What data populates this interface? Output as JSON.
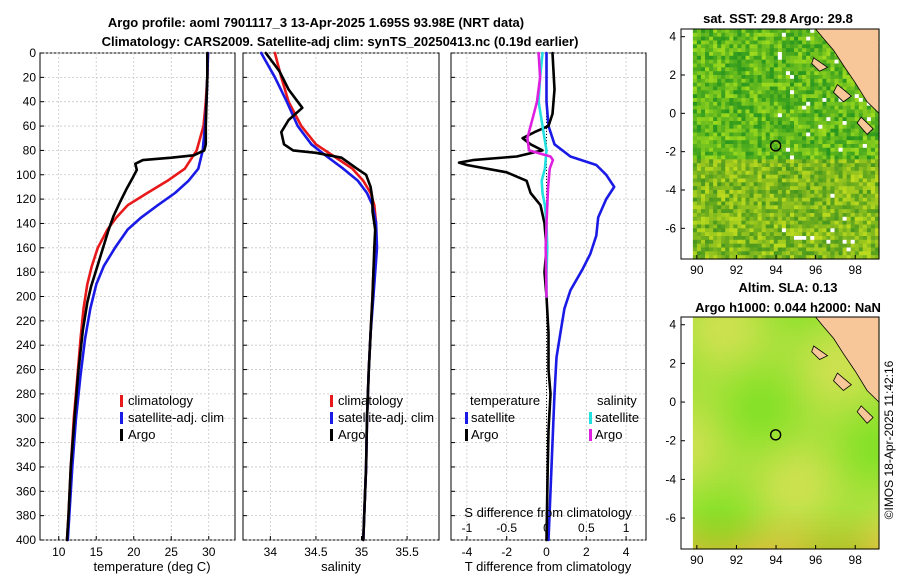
{
  "header": {
    "line1": "Argo profile: aoml 7901117_3 13-Apr-2025 1.695S 93.98E (NRT data)",
    "line2": "Climatology: CARS2009. Satellite-adj clim: synTS_20250413.nc (0.19d earlier)"
  },
  "colors": {
    "climatology": "#e8191a",
    "satellite": "#1a1ae6",
    "argo": "#000000",
    "sat_s": "#22e0e0",
    "argo_s": "#e020e0"
  },
  "chart_data": [
    {
      "id": "temperature",
      "type": "line",
      "xlabel": "temperature (deg C)",
      "ylabel": "",
      "xlim": [
        7.5,
        33.5
      ],
      "ylim": [
        400,
        0
      ],
      "xticks": [
        10,
        15,
        20,
        25,
        30
      ],
      "xtick_labels": [
        "10",
        "15",
        "20",
        "25",
        "30"
      ],
      "yticks": [
        0,
        20,
        40,
        60,
        80,
        100,
        120,
        140,
        160,
        180,
        200,
        220,
        240,
        260,
        280,
        300,
        320,
        340,
        360,
        380,
        400
      ],
      "ytick_labels": [
        "0",
        "20",
        "40",
        "60",
        "80",
        "100",
        "120",
        "140",
        "160",
        "180",
        "200",
        "220",
        "240",
        "260",
        "280",
        "300",
        "320",
        "340",
        "360",
        "380",
        "400"
      ],
      "grid": true,
      "legend": [
        "climatology",
        "satellite-adj. clim",
        "Argo"
      ],
      "legend_position": "lower-right",
      "series": [
        {
          "name": "climatology",
          "color": "#e8191a",
          "points": [
            [
              29.9,
              0
            ],
            [
              29.8,
              20
            ],
            [
              29.6,
              40
            ],
            [
              29.3,
              60
            ],
            [
              28.4,
              80
            ],
            [
              26.8,
              95
            ],
            [
              24.5,
              105
            ],
            [
              21.8,
              115
            ],
            [
              19.2,
              125
            ],
            [
              17.7,
              135
            ],
            [
              16.5,
              145
            ],
            [
              15.2,
              160
            ],
            [
              14.4,
              175
            ],
            [
              13.8,
              190
            ],
            [
              13.3,
              210
            ],
            [
              12.9,
              235
            ],
            [
              12.5,
              265
            ],
            [
              12.0,
              300
            ],
            [
              11.6,
              340
            ],
            [
              11.3,
              380
            ],
            [
              11.1,
              400
            ]
          ]
        },
        {
          "name": "satellite-adj. clim",
          "color": "#1a1ae6",
          "points": [
            [
              29.9,
              0
            ],
            [
              29.8,
              20
            ],
            [
              29.7,
              40
            ],
            [
              29.5,
              60
            ],
            [
              29.2,
              80
            ],
            [
              28.6,
              95
            ],
            [
              27.3,
              105
            ],
            [
              25.5,
              115
            ],
            [
              23.2,
              125
            ],
            [
              21.0,
              135
            ],
            [
              19.2,
              145
            ],
            [
              17.5,
              160
            ],
            [
              16.0,
              175
            ],
            [
              15.0,
              190
            ],
            [
              14.2,
              210
            ],
            [
              13.5,
              235
            ],
            [
              12.9,
              265
            ],
            [
              12.3,
              300
            ],
            [
              11.8,
              340
            ],
            [
              11.4,
              380
            ],
            [
              11.2,
              400
            ]
          ]
        },
        {
          "name": "Argo",
          "color": "#000000",
          "points": [
            [
              29.8,
              0
            ],
            [
              29.8,
              20
            ],
            [
              29.7,
              40
            ],
            [
              29.6,
              60
            ],
            [
              29.6,
              75
            ],
            [
              29.4,
              80
            ],
            [
              28.0,
              84
            ],
            [
              25.0,
              86
            ],
            [
              21.2,
              88
            ],
            [
              20.2,
              91
            ],
            [
              20.4,
              96
            ],
            [
              19.9,
              102
            ],
            [
              19.0,
              112
            ],
            [
              18.2,
              122
            ],
            [
              17.3,
              134
            ],
            [
              16.6,
              146
            ],
            [
              15.8,
              162
            ],
            [
              15.0,
              178
            ],
            [
              14.3,
              192
            ],
            [
              13.8,
              205
            ],
            [
              13.2,
              228
            ],
            [
              12.6,
              262
            ],
            [
              12.1,
              300
            ],
            [
              11.6,
              340
            ],
            [
              11.3,
              380
            ],
            [
              11.1,
              400
            ]
          ]
        }
      ]
    },
    {
      "id": "salinity",
      "type": "line",
      "xlabel": "salinity",
      "ylabel": "",
      "xlim": [
        33.7,
        35.85
      ],
      "ylim": [
        400,
        0
      ],
      "xticks": [
        34,
        34.5,
        35,
        35.5
      ],
      "xtick_labels": [
        "34",
        "34.5",
        "35",
        "35.5"
      ],
      "grid": true,
      "legend": [
        "climatology",
        "satellite-adj. clim",
        "Argo"
      ],
      "legend_position": "lower-right",
      "series": [
        {
          "name": "climatology",
          "color": "#e8191a",
          "points": [
            [
              34.05,
              0
            ],
            [
              34.12,
              20
            ],
            [
              34.2,
              40
            ],
            [
              34.34,
              60
            ],
            [
              34.5,
              75
            ],
            [
              34.7,
              85
            ],
            [
              34.9,
              95
            ],
            [
              35.02,
              105
            ],
            [
              35.1,
              115
            ],
            [
              35.14,
              125
            ],
            [
              35.16,
              140
            ],
            [
              35.15,
              160
            ],
            [
              35.13,
              180
            ],
            [
              35.12,
              200
            ],
            [
              35.1,
              230
            ],
            [
              35.08,
              260
            ],
            [
              35.06,
              300
            ],
            [
              35.05,
              340
            ],
            [
              35.03,
              380
            ],
            [
              35.02,
              400
            ]
          ]
        },
        {
          "name": "satellite-adj. clim",
          "color": "#1a1ae6",
          "points": [
            [
              33.9,
              0
            ],
            [
              34.05,
              20
            ],
            [
              34.18,
              40
            ],
            [
              34.3,
              60
            ],
            [
              34.45,
              75
            ],
            [
              34.62,
              85
            ],
            [
              34.8,
              95
            ],
            [
              34.96,
              105
            ],
            [
              35.06,
              115
            ],
            [
              35.12,
              125
            ],
            [
              35.16,
              140
            ],
            [
              35.17,
              160
            ],
            [
              35.15,
              180
            ],
            [
              35.13,
              200
            ],
            [
              35.1,
              230
            ],
            [
              35.08,
              260
            ],
            [
              35.06,
              300
            ],
            [
              35.05,
              340
            ],
            [
              35.03,
              380
            ],
            [
              35.02,
              400
            ]
          ]
        },
        {
          "name": "Argo",
          "color": "#000000",
          "points": [
            [
              33.95,
              0
            ],
            [
              34.1,
              15
            ],
            [
              34.2,
              30
            ],
            [
              34.35,
              45
            ],
            [
              34.2,
              55
            ],
            [
              34.12,
              65
            ],
            [
              34.15,
              75
            ],
            [
              34.25,
              80
            ],
            [
              34.5,
              82
            ],
            [
              34.78,
              86
            ],
            [
              34.95,
              95
            ],
            [
              35.05,
              100
            ],
            [
              35.1,
              110
            ],
            [
              35.12,
              120
            ],
            [
              35.12,
              130
            ],
            [
              35.15,
              145
            ],
            [
              35.14,
              160
            ],
            [
              35.13,
              180
            ],
            [
              35.12,
              200
            ],
            [
              35.1,
              230
            ],
            [
              35.08,
              260
            ],
            [
              35.06,
              300
            ],
            [
              35.05,
              340
            ],
            [
              35.03,
              380
            ],
            [
              35.02,
              400
            ]
          ]
        }
      ]
    },
    {
      "id": "difference",
      "type": "line",
      "xlabel": "T difference from climatology",
      "top_label": "S difference from climatology",
      "xlim": [
        -4.8,
        5.0
      ],
      "ylim": [
        400,
        0
      ],
      "xticks": [
        -4,
        -2,
        0,
        2,
        4
      ],
      "xtick_labels": [
        "-4",
        "-2",
        "0",
        "2",
        "4"
      ],
      "s_xlim": [
        -1.2,
        1.25
      ],
      "s_xticks": [
        -1,
        -0.5,
        0,
        0.5,
        1
      ],
      "s_xtick_labels": [
        "-1",
        "-0.5",
        "0",
        "0.5",
        "1"
      ],
      "grid": true,
      "legend_temperature": {
        "heading": "temperature",
        "items": [
          "satellite",
          "Argo"
        ]
      },
      "legend_salinity": {
        "heading": "salinity",
        "items": [
          "satellite",
          "Argo"
        ]
      },
      "series": [
        {
          "name": "T satellite",
          "color": "#1a1ae6",
          "points": [
            [
              0.0,
              0
            ],
            [
              0.0,
              40
            ],
            [
              0.1,
              60
            ],
            [
              0.4,
              75
            ],
            [
              1.2,
              85
            ],
            [
              2.5,
              92
            ],
            [
              3.0,
              100
            ],
            [
              3.4,
              110
            ],
            [
              3.0,
              120
            ],
            [
              2.6,
              135
            ],
            [
              2.5,
              150
            ],
            [
              2.2,
              165
            ],
            [
              1.8,
              178
            ],
            [
              1.2,
              195
            ],
            [
              0.9,
              210
            ],
            [
              0.7,
              230
            ],
            [
              0.5,
              250
            ],
            [
              0.4,
              280
            ],
            [
              0.3,
              320
            ],
            [
              0.2,
              360
            ],
            [
              0.1,
              400
            ]
          ]
        },
        {
          "name": "T Argo",
          "color": "#000000",
          "points": [
            [
              0.3,
              0
            ],
            [
              0.4,
              30
            ],
            [
              0.3,
              50
            ],
            [
              0.1,
              60
            ],
            [
              -0.6,
              65
            ],
            [
              -1.2,
              70
            ],
            [
              -0.8,
              75
            ],
            [
              -0.2,
              80
            ],
            [
              -1.5,
              85
            ],
            [
              -3.7,
              88
            ],
            [
              -4.4,
              90
            ],
            [
              -4.0,
              92
            ],
            [
              -2.0,
              98
            ],
            [
              -1.0,
              105
            ],
            [
              -0.8,
              115
            ],
            [
              -0.3,
              125
            ],
            [
              -0.1,
              140
            ],
            [
              0.0,
              160
            ],
            [
              -0.1,
              180
            ],
            [
              0.0,
              200
            ],
            [
              0.1,
              230
            ],
            [
              0.1,
              260
            ],
            [
              0.2,
              280
            ],
            [
              0.1,
              310
            ],
            [
              0.05,
              350
            ],
            [
              0.0,
              400
            ]
          ]
        },
        {
          "name": "S satellite",
          "color": "#22e0e0",
          "axis": "s",
          "points": [
            [
              -0.05,
              0
            ],
            [
              -0.08,
              20
            ],
            [
              -0.1,
              40
            ],
            [
              -0.05,
              60
            ],
            [
              0.0,
              80
            ],
            [
              -0.02,
              95
            ],
            [
              -0.06,
              105
            ],
            [
              -0.05,
              115
            ],
            [
              -0.02,
              125
            ],
            [
              0.0,
              140
            ],
            [
              0.01,
              160
            ],
            [
              0.0,
              180
            ],
            [
              0.0,
              200
            ]
          ]
        },
        {
          "name": "S Argo",
          "color": "#e020e0",
          "axis": "s",
          "points": [
            [
              -0.1,
              0
            ],
            [
              -0.08,
              20
            ],
            [
              -0.12,
              40
            ],
            [
              -0.16,
              50
            ],
            [
              -0.2,
              60
            ],
            [
              -0.24,
              70
            ],
            [
              -0.22,
              80
            ],
            [
              0.05,
              85
            ],
            [
              0.08,
              88
            ],
            [
              0.04,
              95
            ],
            [
              0.02,
              110
            ],
            [
              0.0,
              140
            ],
            [
              -0.01,
              160
            ],
            [
              0.0,
              200
            ]
          ]
        }
      ]
    },
    {
      "id": "sst_map",
      "type": "heatmap",
      "title": "sat. SST: 29.8 Argo: 29.8",
      "xlim": [
        89.2,
        99.2
      ],
      "ylim": [
        -7.6,
        4.4
      ],
      "xticks": [
        90,
        92,
        94,
        96,
        98
      ],
      "xtick_labels": [
        "90",
        "92",
        "94",
        "96",
        "98"
      ],
      "yticks": [
        4,
        2,
        0,
        -2,
        -4,
        -6
      ],
      "ytick_labels": [
        "4",
        "2",
        "0",
        "-2",
        "-4",
        "-6"
      ],
      "argo_position": [
        93.98,
        -1.695
      ]
    },
    {
      "id": "sla_map",
      "type": "heatmap",
      "title_line1": "Altim. SLA: 0.13",
      "title_line2": "Argo h1000: 0.044 h2000: NaN",
      "xlim": [
        89.2,
        99.2
      ],
      "ylim": [
        -7.6,
        4.4
      ],
      "xticks": [
        90,
        92,
        94,
        96,
        98
      ],
      "xtick_labels": [
        "90",
        "92",
        "94",
        "96",
        "98"
      ],
      "yticks": [
        4,
        2,
        0,
        -2,
        -4,
        -6
      ],
      "ytick_labels": [
        "4",
        "2",
        "0",
        "-2",
        "-4",
        "-6"
      ],
      "argo_position": [
        93.98,
        -1.695
      ]
    }
  ],
  "credit": "©IMOS 18-Apr-2025 11:42:16"
}
